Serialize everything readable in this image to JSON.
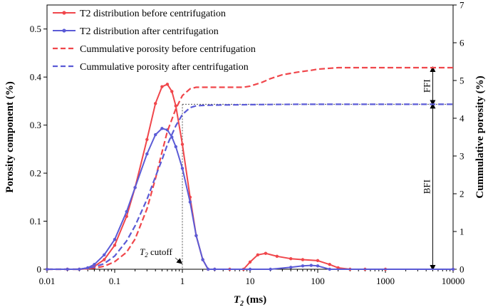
{
  "chart_data": {
    "type": "line",
    "xlabel_main": "T",
    "xlabel_sub": "2",
    "xlabel_unit": " (ms)",
    "ylabel_left": "Porosity component (%)",
    "ylabel_right": "Cummulative porosity  (%)",
    "x_scale": "log",
    "xlim": [
      0.01,
      10000
    ],
    "ylim_left": [
      0,
      0.55
    ],
    "ylim_right": [
      0,
      7
    ],
    "x_ticks": [
      "0.01",
      "0.1",
      "1",
      "10",
      "100",
      "1000",
      "10000"
    ],
    "y_left_ticks": [
      "0",
      "0.1",
      "0.2",
      "0.3",
      "0.4",
      "0.5"
    ],
    "y_right_ticks": [
      "0",
      "1",
      "2",
      "3",
      "4",
      "5",
      "6",
      "7"
    ],
    "grid": false,
    "legend_position": "top-left",
    "series": [
      {
        "name": "T2 distribution before  centrifugation",
        "axis": "left",
        "style": "solid-marker",
        "color": "#f0464b",
        "x": [
          0.01,
          0.02,
          0.03,
          0.04,
          0.05,
          0.07,
          0.1,
          0.15,
          0.2,
          0.3,
          0.4,
          0.5,
          0.6,
          0.7,
          0.8,
          1.0,
          1.3,
          1.6,
          2.0,
          2.4,
          3,
          5,
          8,
          10,
          13,
          17,
          25,
          40,
          60,
          100,
          150,
          200,
          300,
          500,
          1000,
          10000
        ],
        "y": [
          0,
          0,
          0,
          0.002,
          0.006,
          0.02,
          0.05,
          0.11,
          0.17,
          0.27,
          0.345,
          0.38,
          0.385,
          0.37,
          0.34,
          0.26,
          0.15,
          0.07,
          0.02,
          0,
          0,
          0,
          0,
          0.015,
          0.03,
          0.033,
          0.027,
          0.022,
          0.02,
          0.018,
          0.01,
          0.003,
          0,
          0,
          0,
          0
        ]
      },
      {
        "name": "T2 distribution after  centrifugation",
        "axis": "left",
        "style": "solid-marker",
        "color": "#5b5bd6",
        "x": [
          0.01,
          0.02,
          0.03,
          0.04,
          0.05,
          0.07,
          0.1,
          0.15,
          0.2,
          0.3,
          0.4,
          0.5,
          0.6,
          0.7,
          0.8,
          1.0,
          1.3,
          1.6,
          2.0,
          2.4,
          3,
          10,
          20,
          40,
          60,
          80,
          100,
          150,
          10000
        ],
        "y": [
          0,
          0,
          0,
          0.003,
          0.01,
          0.03,
          0.062,
          0.12,
          0.17,
          0.24,
          0.28,
          0.293,
          0.29,
          0.275,
          0.255,
          0.21,
          0.14,
          0.07,
          0.02,
          0,
          0,
          0,
          0,
          0.004,
          0.007,
          0.008,
          0.007,
          0,
          0
        ]
      },
      {
        "name": "Cummulative porosity before  centrifugation",
        "axis": "right",
        "style": "dashed",
        "color": "#f0464b",
        "x": [
          0.01,
          0.03,
          0.05,
          0.07,
          0.1,
          0.15,
          0.2,
          0.3,
          0.4,
          0.5,
          0.6,
          0.8,
          1.0,
          1.3,
          1.6,
          2.0,
          3,
          5,
          8,
          10,
          15,
          20,
          30,
          50,
          80,
          100,
          200,
          10000
        ],
        "y": [
          0,
          0,
          0.03,
          0.08,
          0.2,
          0.45,
          0.8,
          1.6,
          2.4,
          3.1,
          3.65,
          4.25,
          4.6,
          4.78,
          4.82,
          4.82,
          4.82,
          4.82,
          4.82,
          4.85,
          4.95,
          5.05,
          5.15,
          5.22,
          5.27,
          5.3,
          5.34,
          5.34
        ]
      },
      {
        "name": "Cummulative porosity after  centrifugation",
        "axis": "right",
        "style": "dashed",
        "color": "#5b5bd6",
        "x": [
          0.01,
          0.03,
          0.05,
          0.07,
          0.1,
          0.15,
          0.2,
          0.3,
          0.4,
          0.5,
          0.6,
          0.8,
          1.0,
          1.3,
          1.6,
          2.0,
          3,
          10,
          50,
          100,
          10000
        ],
        "y": [
          0,
          0,
          0.06,
          0.15,
          0.35,
          0.75,
          1.15,
          1.85,
          2.45,
          2.9,
          3.3,
          3.8,
          4.1,
          4.28,
          4.33,
          4.34,
          4.35,
          4.36,
          4.37,
          4.37,
          4.37
        ]
      }
    ],
    "annotations": {
      "ffi": "FFI",
      "bfi": "BFI",
      "cutoff_main": "T",
      "cutoff_sub": "2",
      "cutoff_rest": " cutoff"
    },
    "cutoff_x": 1.0,
    "level_bfi": 4.37,
    "level_total": 5.34,
    "arrow_x": 5000
  }
}
